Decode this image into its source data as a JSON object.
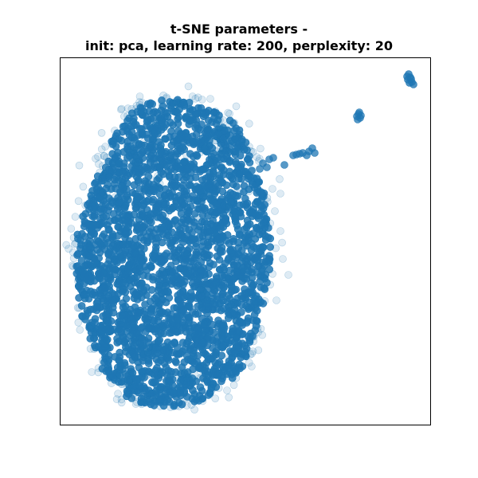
{
  "chart_data": {
    "type": "scatter",
    "title": "t-SNE parameters -",
    "subtitle": "init: pca, learning rate: 200, perplexity: 20",
    "xlabel": "",
    "ylabel": "",
    "axes_ticks": false,
    "grid": false,
    "legend": false,
    "marker_color": "#1f77b4",
    "marker_alpha": 0.15,
    "series": [
      {
        "values": "dense 2D embedding cluster with small outlier clusters to the upper right"
      }
    ]
  }
}
